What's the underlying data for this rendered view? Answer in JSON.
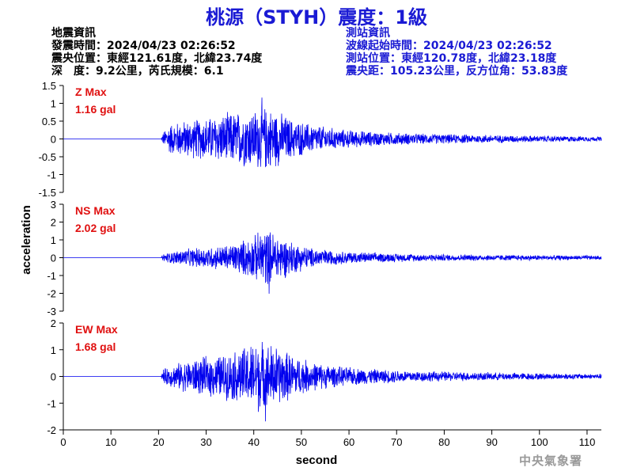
{
  "title": "桃源（STYH）震度：1級",
  "info_left": {
    "heading": "地震資訊",
    "origin_time": "發震時間：2024/04/23 02:26:52",
    "epicenter": "震央位置：東經121.61度，北緯23.74度",
    "depth_magnitude": "深　度：9.2公里，芮氏規模：6.1"
  },
  "info_right": {
    "heading": "測站資訊",
    "wave_start": "波線起始時間：2024/04/23 02:26:52",
    "station_position": "測站位置：東經120.78度，北緯23.18度",
    "distance_azimuth": "震央距：105.23公里，反方位角：53.83度"
  },
  "credit": "中央氣象署",
  "colors": {
    "trace": "#0000ee",
    "max_label": "#e01010",
    "title": "#1a1ad4",
    "station_info": "#1a1ad4"
  },
  "chart_data": {
    "type": "line",
    "xlabel": "second",
    "ylabel": "acceleration",
    "xlim": [
      0,
      113
    ],
    "x_ticks": [
      0,
      10,
      20,
      30,
      40,
      50,
      60,
      70,
      80,
      90,
      100,
      110
    ],
    "grid": false,
    "panels": [
      {
        "component": "Z",
        "max_label": "Z Max",
        "max_value_label": "1.16 gal",
        "max_value": 1.16,
        "ylim": [
          -1.5,
          1.5
        ],
        "y_ticks": [
          -1.5,
          -1,
          -0.5,
          0,
          0.5,
          1,
          1.5
        ],
        "onset_s": 20.5,
        "envelope": [
          [
            0,
            0
          ],
          [
            20.5,
            0
          ],
          [
            21,
            0.2
          ],
          [
            22,
            0.45
          ],
          [
            25,
            0.55
          ],
          [
            30,
            0.65
          ],
          [
            35,
            0.8
          ],
          [
            40,
            0.9
          ],
          [
            42,
            1.0
          ],
          [
            45,
            0.85
          ],
          [
            48,
            0.6
          ],
          [
            52,
            0.45
          ],
          [
            58,
            0.3
          ],
          [
            65,
            0.22
          ],
          [
            75,
            0.16
          ],
          [
            90,
            0.12
          ],
          [
            113,
            0.07
          ]
        ]
      },
      {
        "component": "NS",
        "max_label": "NS Max",
        "max_value_label": "2.02 gal",
        "max_value": 2.02,
        "ylim": [
          -3,
          3
        ],
        "y_ticks": [
          -3,
          -2,
          -1,
          0,
          1,
          2,
          3
        ],
        "onset_s": 20.5,
        "envelope": [
          [
            0,
            0
          ],
          [
            20.5,
            0
          ],
          [
            21,
            0.25
          ],
          [
            25,
            0.5
          ],
          [
            30,
            0.65
          ],
          [
            35,
            0.8
          ],
          [
            40,
            1.3
          ],
          [
            42,
            1.8
          ],
          [
            44,
            1.6
          ],
          [
            48,
            1.0
          ],
          [
            52,
            0.6
          ],
          [
            58,
            0.4
          ],
          [
            65,
            0.3
          ],
          [
            75,
            0.22
          ],
          [
            90,
            0.18
          ],
          [
            113,
            0.12
          ]
        ]
      },
      {
        "component": "EW",
        "max_label": "EW Max",
        "max_value_label": "1.68 gal",
        "max_value": 1.68,
        "ylim": [
          -2,
          2
        ],
        "y_ticks": [
          -2,
          -1,
          0,
          1,
          2
        ],
        "onset_s": 20.5,
        "envelope": [
          [
            0,
            0
          ],
          [
            20.5,
            0
          ],
          [
            21,
            0.3
          ],
          [
            25,
            0.6
          ],
          [
            30,
            0.8
          ],
          [
            35,
            0.95
          ],
          [
            38,
            1.2
          ],
          [
            41,
            1.5
          ],
          [
            44,
            1.3
          ],
          [
            48,
            0.9
          ],
          [
            52,
            0.6
          ],
          [
            58,
            0.4
          ],
          [
            65,
            0.3
          ],
          [
            75,
            0.22
          ],
          [
            90,
            0.16
          ],
          [
            113,
            0.1
          ]
        ]
      }
    ]
  }
}
